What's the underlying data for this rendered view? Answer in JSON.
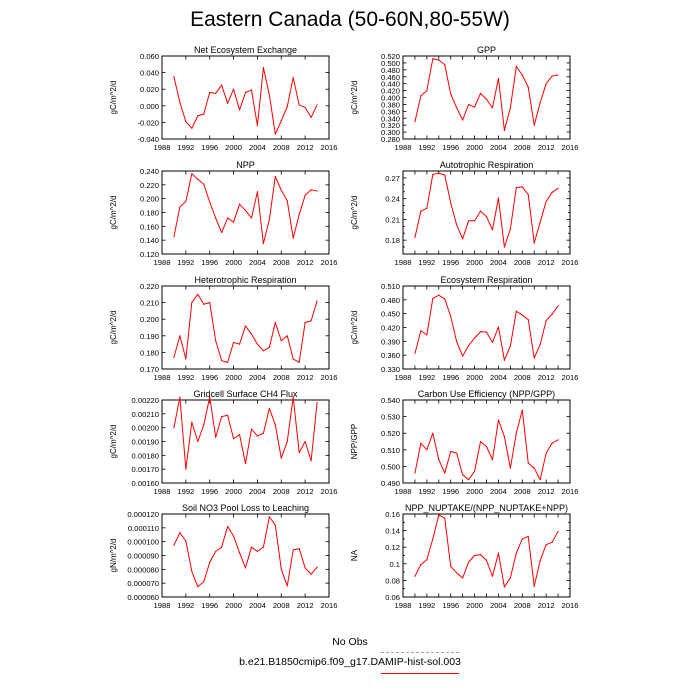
{
  "title": "Eastern Canada (50-60N,80-55W)",
  "legend": {
    "obs_label": "No Obs",
    "obs_color": "#9a9aff",
    "model_label": "b.e21.B1850cmip6.f09_g17.DAMIP-hist-sol.003",
    "model_color": "#ff0000"
  },
  "chart_data": [
    {
      "type": "line",
      "title": "Net Ecosystem Exchange",
      "ylabel": "gC/m^2/d",
      "xlim": [
        1988,
        2016
      ],
      "xticks": [
        1988,
        1992,
        1996,
        2000,
        2004,
        2008,
        2012,
        2016
      ],
      "xtick_labels": [
        "1988",
        "1992",
        "1996",
        "2000",
        "2004",
        "2008",
        "2012",
        "2016"
      ],
      "ylim": [
        -0.04,
        0.06
      ],
      "yticks": [
        -0.04,
        -0.02,
        0.0,
        0.02,
        0.04,
        0.06
      ],
      "ytick_labels": [
        "-0.040",
        "-0.020",
        "0.000",
        "0.020",
        "0.040",
        "0.060"
      ],
      "x": [
        1990,
        1991,
        1992,
        1993,
        1994,
        1995,
        1996,
        1997,
        1998,
        1999,
        2000,
        2001,
        2002,
        2003,
        2004,
        2005,
        2006,
        2007,
        2008,
        2009,
        2010,
        2011,
        2012,
        2013,
        2014
      ],
      "series": [
        {
          "values": [
            0.035,
            0.004,
            -0.019,
            -0.027,
            -0.012,
            -0.01,
            0.016,
            0.015,
            0.025,
            0.003,
            0.02,
            -0.005,
            0.016,
            0.019,
            -0.024,
            0.046,
            0.013,
            -0.034,
            -0.018,
            -0.001,
            0.034,
            0.001,
            -0.002,
            -0.014,
            0.001
          ]
        }
      ]
    },
    {
      "type": "line",
      "title": "GPP",
      "ylabel": "gC/m^2/d",
      "xlim": [
        1988,
        2016
      ],
      "xticks": [
        1988,
        1990,
        1992,
        1994,
        1996,
        1998,
        2000,
        2002,
        2004,
        2006,
        2008,
        2010,
        2012,
        2014,
        2016
      ],
      "xtick_labels": [
        "1988",
        "1990",
        "1992",
        "1994",
        "1996",
        "1998",
        "2000",
        "2002",
        "2004",
        "2006",
        "2008",
        "2010",
        "2012",
        "2014",
        "2016"
      ],
      "ylim": [
        0.28,
        0.52
      ],
      "yticks": [
        0.28,
        0.3,
        0.32,
        0.34,
        0.36,
        0.38,
        0.4,
        0.42,
        0.44,
        0.46,
        0.48,
        0.5,
        0.52
      ],
      "ytick_labels": [
        "0.280",
        "0.300",
        "0.320",
        "0.340",
        "0.360",
        "0.380",
        "0.400",
        "0.420",
        "0.440",
        "0.460",
        "0.480",
        "0.500",
        "0.520"
      ],
      "x": [
        1990,
        1991,
        1992,
        1993,
        1994,
        1995,
        1996,
        1997,
        1998,
        1999,
        2000,
        2001,
        2002,
        2003,
        2004,
        2005,
        2006,
        2007,
        2008,
        2009,
        2010,
        2011,
        2012,
        2013,
        2014
      ],
      "series": [
        {
          "values": [
            0.33,
            0.405,
            0.42,
            0.512,
            0.508,
            0.495,
            0.41,
            0.37,
            0.335,
            0.38,
            0.372,
            0.412,
            0.395,
            0.37,
            0.455,
            0.305,
            0.37,
            0.49,
            0.465,
            0.43,
            0.32,
            0.385,
            0.44,
            0.462,
            0.465
          ]
        }
      ]
    },
    {
      "type": "line",
      "title": "NPP",
      "ylabel": "gC/m^2/d",
      "xlim": [
        1988,
        2016
      ],
      "xticks": [
        1988,
        1992,
        1996,
        2000,
        2004,
        2008,
        2012,
        2016
      ],
      "xtick_labels": [
        "1988",
        "1992",
        "1996",
        "2000",
        "2004",
        "2008",
        "2012",
        "2016"
      ],
      "ylim": [
        0.12,
        0.24
      ],
      "yticks": [
        0.12,
        0.14,
        0.16,
        0.18,
        0.2,
        0.22,
        0.24
      ],
      "ytick_labels": [
        "0.120",
        "0.140",
        "0.160",
        "0.180",
        "0.200",
        "0.220",
        "0.240"
      ],
      "x": [
        1990,
        1991,
        1992,
        1993,
        1994,
        1995,
        1996,
        1997,
        1998,
        1999,
        2000,
        2001,
        2002,
        2003,
        2004,
        2005,
        2006,
        2007,
        2008,
        2009,
        2010,
        2011,
        2012,
        2013,
        2014
      ],
      "series": [
        {
          "values": [
            0.145,
            0.188,
            0.196,
            0.236,
            0.228,
            0.221,
            0.195,
            0.172,
            0.151,
            0.172,
            0.166,
            0.192,
            0.183,
            0.172,
            0.21,
            0.135,
            0.17,
            0.232,
            0.212,
            0.197,
            0.143,
            0.177,
            0.205,
            0.213,
            0.211
          ]
        }
      ]
    },
    {
      "type": "line",
      "title": "Autotrophic Respiration",
      "ylabel": "gC/m^2/d",
      "xlim": [
        1988,
        2016
      ],
      "xticks": [
        1988,
        1990,
        1992,
        1994,
        1996,
        1998,
        2000,
        2002,
        2004,
        2006,
        2008,
        2010,
        2012,
        2014,
        2016
      ],
      "xtick_labels": [
        "1988",
        "1990",
        "1992",
        "1994",
        "1996",
        "1998",
        "2000",
        "2002",
        "2004",
        "2006",
        "2008",
        "2010",
        "2012",
        "2014",
        "2016"
      ],
      "ylim": [
        0.16,
        0.28
      ],
      "yticks": [
        0.16,
        0.17,
        0.18,
        0.19,
        0.2,
        0.21,
        0.22,
        0.23,
        0.24,
        0.25,
        0.26,
        0.27,
        0.28
      ],
      "ytick_labels": [
        "",
        "",
        "0.18",
        "",
        "",
        "0.21",
        "",
        "",
        "0.24",
        "",
        "",
        "0.27",
        ""
      ],
      "x": [
        1990,
        1991,
        1992,
        1993,
        1994,
        1995,
        1996,
        1997,
        1998,
        1999,
        2000,
        2001,
        2002,
        2003,
        2004,
        2005,
        2006,
        2007,
        2008,
        2009,
        2010,
        2011,
        2012,
        2013,
        2014
      ],
      "series": [
        {
          "values": [
            0.184,
            0.222,
            0.226,
            0.275,
            0.277,
            0.274,
            0.234,
            0.202,
            0.182,
            0.208,
            0.208,
            0.222,
            0.214,
            0.195,
            0.241,
            0.17,
            0.196,
            0.256,
            0.257,
            0.246,
            0.176,
            0.206,
            0.236,
            0.249,
            0.255
          ]
        }
      ]
    },
    {
      "type": "line",
      "title": "Heterotrophic Respiration",
      "ylabel": "gC/m^2/d",
      "xlim": [
        1988,
        2016
      ],
      "xticks": [
        1988,
        1992,
        1996,
        2000,
        2004,
        2008,
        2012,
        2016
      ],
      "xtick_labels": [
        "1988",
        "1992",
        "1996",
        "2000",
        "2004",
        "2008",
        "2012",
        "2016"
      ],
      "ylim": [
        0.17,
        0.22
      ],
      "yticks": [
        0.17,
        0.18,
        0.19,
        0.2,
        0.21,
        0.22
      ],
      "ytick_labels": [
        "0.170",
        "0.180",
        "0.190",
        "0.200",
        "0.210",
        "0.220"
      ],
      "x": [
        1990,
        1991,
        1992,
        1993,
        1994,
        1995,
        1996,
        1997,
        1998,
        1999,
        2000,
        2001,
        2002,
        2003,
        2004,
        2005,
        2006,
        2007,
        2008,
        2009,
        2010,
        2011,
        2012,
        2013,
        2014
      ],
      "series": [
        {
          "values": [
            0.177,
            0.19,
            0.176,
            0.21,
            0.215,
            0.209,
            0.21,
            0.187,
            0.175,
            0.174,
            0.186,
            0.185,
            0.196,
            0.191,
            0.185,
            0.181,
            0.183,
            0.198,
            0.187,
            0.19,
            0.176,
            0.174,
            0.198,
            0.199,
            0.211
          ]
        }
      ]
    },
    {
      "type": "line",
      "title": "Ecosystem Respiration",
      "ylabel": "gC/m^2/d",
      "xlim": [
        1988,
        2016
      ],
      "xticks": [
        1988,
        1990,
        1992,
        1994,
        1996,
        1998,
        2000,
        2002,
        2004,
        2006,
        2008,
        2010,
        2012,
        2014,
        2016
      ],
      "xtick_labels": [
        "1988",
        "1990",
        "1992",
        "1994",
        "1996",
        "1998",
        "2000",
        "2002",
        "2004",
        "2006",
        "2008",
        "2010",
        "2012",
        "2014",
        "2016"
      ],
      "ylim": [
        0.33,
        0.51
      ],
      "yticks": [
        0.33,
        0.36,
        0.39,
        0.42,
        0.45,
        0.48,
        0.51
      ],
      "ytick_labels": [
        "0.330",
        "0.360",
        "0.390",
        "0.420",
        "0.450",
        "0.480",
        "0.510"
      ],
      "x": [
        1990,
        1991,
        1992,
        1993,
        1994,
        1995,
        1996,
        1997,
        1998,
        1999,
        2000,
        2001,
        2002,
        2003,
        2004,
        2005,
        2006,
        2007,
        2008,
        2009,
        2010,
        2011,
        2012,
        2013,
        2014
      ],
      "series": [
        {
          "values": [
            0.364,
            0.413,
            0.404,
            0.483,
            0.49,
            0.482,
            0.444,
            0.389,
            0.358,
            0.381,
            0.397,
            0.411,
            0.41,
            0.388,
            0.421,
            0.349,
            0.38,
            0.455,
            0.447,
            0.437,
            0.354,
            0.383,
            0.435,
            0.449,
            0.467
          ]
        }
      ]
    },
    {
      "type": "line",
      "title": "Gridcell Surface CH4 Flux",
      "ylabel": "gC/m^2/d",
      "xlim": [
        1988,
        2016
      ],
      "xticks": [
        1988,
        1992,
        1996,
        2000,
        2004,
        2008,
        2012,
        2016
      ],
      "xtick_labels": [
        "1988",
        "1992",
        "1996",
        "2000",
        "2004",
        "2008",
        "2012",
        "2016"
      ],
      "ylim": [
        0.0016,
        0.0022
      ],
      "yticks": [
        0.0016,
        0.0017,
        0.0018,
        0.0019,
        0.002,
        0.0021,
        0.0022
      ],
      "ytick_labels": [
        "0.00160",
        "0.00170",
        "0.00180",
        "0.00190",
        "0.00200",
        "0.00210",
        "0.00220"
      ],
      "x": [
        1990,
        1991,
        1992,
        1993,
        1994,
        1995,
        1996,
        1997,
        1998,
        1999,
        2000,
        2001,
        2002,
        2003,
        2004,
        2005,
        2006,
        2007,
        2008,
        2009,
        2010,
        2011,
        2012,
        2013,
        2014
      ],
      "series": [
        {
          "values": [
            0.002,
            0.00222,
            0.0017,
            0.00204,
            0.0019,
            0.00202,
            0.00222,
            0.00193,
            0.00208,
            0.00209,
            0.00192,
            0.00195,
            0.00174,
            0.00199,
            0.00194,
            0.00196,
            0.00214,
            0.00202,
            0.00178,
            0.0019,
            0.00222,
            0.00182,
            0.0019,
            0.00176,
            0.00218
          ]
        }
      ]
    },
    {
      "type": "line",
      "title": "Carbon Use Efficiency (NPP/GPP)",
      "ylabel": "NPP/GPP",
      "xlim": [
        1988,
        2016
      ],
      "xticks": [
        1988,
        1990,
        1992,
        1994,
        1996,
        1998,
        2000,
        2002,
        2004,
        2006,
        2008,
        2010,
        2012,
        2014,
        2016
      ],
      "xtick_labels": [
        "1988",
        "1990",
        "1992",
        "1994",
        "1996",
        "1998",
        "2000",
        "2002",
        "2004",
        "2006",
        "2008",
        "2010",
        "2012",
        "2014",
        "2016"
      ],
      "ylim": [
        0.49,
        0.54
      ],
      "yticks": [
        0.49,
        0.5,
        0.51,
        0.52,
        0.53,
        0.54
      ],
      "ytick_labels": [
        "0.490",
        "0.500",
        "0.510",
        "0.520",
        "0.530",
        "0.540"
      ],
      "x": [
        1990,
        1991,
        1992,
        1993,
        1994,
        1995,
        1996,
        1997,
        1998,
        1999,
        2000,
        2001,
        2002,
        2003,
        2004,
        2005,
        2006,
        2007,
        2008,
        2009,
        2010,
        2011,
        2012,
        2013,
        2014
      ],
      "series": [
        {
          "values": [
            0.496,
            0.514,
            0.51,
            0.52,
            0.504,
            0.496,
            0.509,
            0.508,
            0.495,
            0.492,
            0.497,
            0.515,
            0.512,
            0.504,
            0.528,
            0.518,
            0.499,
            0.52,
            0.534,
            0.502,
            0.499,
            0.492,
            0.508,
            0.514,
            0.516
          ]
        }
      ]
    },
    {
      "type": "line",
      "title": "Soil NO3 Pool Loss to Leaching",
      "ylabel": "gN/m^2/d",
      "xlim": [
        1988,
        2016
      ],
      "xticks": [
        1988,
        1992,
        1996,
        2000,
        2004,
        2008,
        2012,
        2016
      ],
      "xtick_labels": [
        "1988",
        "1992",
        "1996",
        "2000",
        "2004",
        "2008",
        "2012",
        "2016"
      ],
      "ylim": [
        6e-05,
        0.00012
      ],
      "yticks": [
        6e-05,
        7e-05,
        8e-05,
        9e-05,
        0.0001,
        0.00011,
        0.00012
      ],
      "ytick_labels": [
        "0.000060",
        "0.000070",
        "0.000080",
        "0.000090",
        "0.000100",
        "0.000110",
        "0.000120"
      ],
      "x": [
        1990,
        1991,
        1992,
        1993,
        1994,
        1995,
        1996,
        1997,
        1998,
        1999,
        2000,
        2001,
        2002,
        2003,
        2004,
        2005,
        2006,
        2007,
        2008,
        2009,
        2010,
        2011,
        2012,
        2013,
        2014
      ],
      "series": [
        {
          "values": [
            9.75e-05,
            0.0001065,
            0.0001005,
            7.85e-05,
            6.75e-05,
            7.1e-05,
            8.5e-05,
            9.3e-05,
            9.6e-05,
            0.000111,
            0.000104,
            9.2e-05,
            8.1e-05,
            9.6e-05,
            9.3e-05,
            9.6e-05,
            0.000118,
            0.000112,
            8e-05,
            6.8e-05,
            9.4e-05,
            9.5e-05,
            8.1e-05,
            7.65e-05,
            8.15e-05
          ]
        }
      ]
    },
    {
      "type": "line",
      "title": "NPP_NUPTAKE/(NPP_NUPTAKE+NPP)",
      "ylabel": "NA",
      "xlim": [
        1988,
        2016
      ],
      "xticks": [
        1988,
        1990,
        1992,
        1994,
        1996,
        1998,
        2000,
        2002,
        2004,
        2006,
        2008,
        2010,
        2012,
        2014,
        2016
      ],
      "xtick_labels": [
        "1988",
        "1990",
        "1992",
        "1994",
        "1996",
        "1998",
        "2000",
        "2002",
        "2004",
        "2006",
        "2008",
        "2010",
        "2012",
        "2014",
        "2016"
      ],
      "ylim": [
        0.06,
        0.16
      ],
      "yticks": [
        0.06,
        0.07,
        0.08,
        0.09,
        0.1,
        0.11,
        0.12,
        0.13,
        0.14,
        0.15,
        0.16
      ],
      "ytick_labels": [
        "0.06",
        "",
        "0.08",
        "",
        "0.1",
        "",
        "0.12",
        "",
        "0.14",
        "",
        "0.16"
      ],
      "x": [
        1990,
        1991,
        1992,
        1993,
        1994,
        1995,
        1996,
        1997,
        1998,
        1999,
        2000,
        2001,
        2002,
        2003,
        2004,
        2005,
        2006,
        2007,
        2008,
        2009,
        2010,
        2011,
        2012,
        2013,
        2014
      ],
      "series": [
        {
          "values": [
            0.085,
            0.099,
            0.105,
            0.13,
            0.159,
            0.155,
            0.097,
            0.089,
            0.083,
            0.102,
            0.11,
            0.111,
            0.104,
            0.085,
            0.113,
            0.072,
            0.083,
            0.113,
            0.13,
            0.133,
            0.073,
            0.104,
            0.123,
            0.126,
            0.139
          ]
        }
      ]
    }
  ]
}
